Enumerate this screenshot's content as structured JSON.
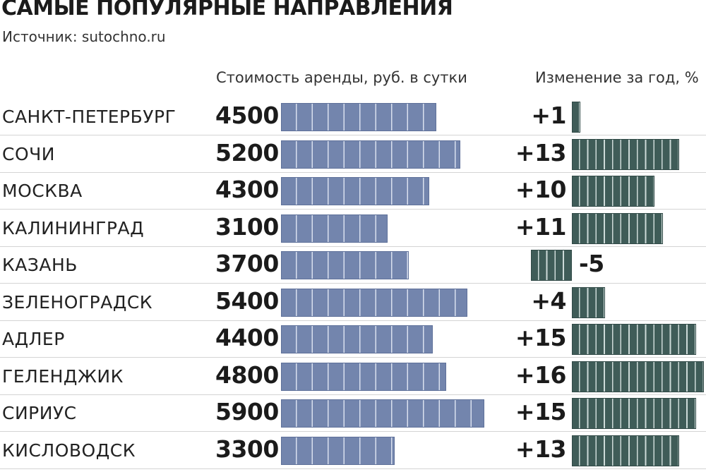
{
  "header": {
    "title": "САМЫЕ ПОПУЛЯРНЫЕ НАПРАВЛЕНИЯ",
    "source": "Источник: sutochno.ru"
  },
  "columns": {
    "cost": "Стоимость аренды, руб. в сутки",
    "change": "Изменение за год, %"
  },
  "colors": {
    "cost_bar": "#7385ad",
    "change_bar": "#3f5c58"
  },
  "chart_data": {
    "type": "bar",
    "categories": [
      "САНКТ-ПЕТЕРБУРГ",
      "СОЧИ",
      "МОСКВА",
      "КАЛИНИНГРАД",
      "КАЗАНЬ",
      "ЗЕЛЕНОГРАДСК",
      "АДЛЕР",
      "ГЕЛЕНДЖИК",
      "СИРИУС",
      "КИСЛОВОДСК"
    ],
    "series": [
      {
        "name": "Стоимость аренды, руб. в сутки",
        "values": [
          4500,
          5200,
          4300,
          3100,
          3700,
          5400,
          4400,
          4800,
          5900,
          3300
        ]
      },
      {
        "name": "Изменение за год, %",
        "values": [
          1,
          13,
          10,
          11,
          -5,
          4,
          15,
          16,
          15,
          13
        ]
      }
    ],
    "change_labels": [
      "+1",
      "+13",
      "+10",
      "+11",
      "-5",
      "+4",
      "+15",
      "+16",
      "+15",
      "+13"
    ],
    "title": "САМЫЕ ПОПУЛЯРНЫЕ НАПРАВЛЕНИЯ",
    "grid": false
  }
}
